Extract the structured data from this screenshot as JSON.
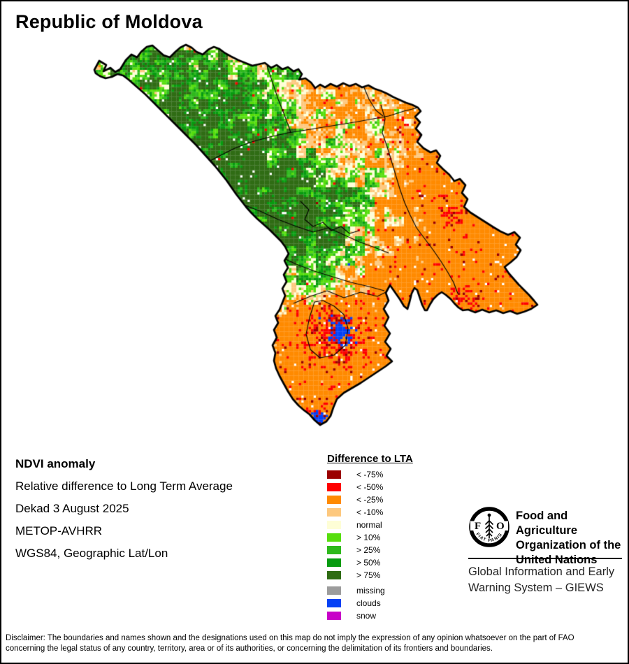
{
  "title": "Republic of Moldova",
  "info": {
    "heading": "NDVI anomaly",
    "lines": [
      "Relative difference to Long Term Average",
      "Dekad 3 August 2025",
      "METOP-AVHRR",
      "WGS84, Geographic Lat/Lon"
    ]
  },
  "legend": {
    "title": "Difference to LTA",
    "classes": [
      {
        "label": "< -75%",
        "color": "#9B0000"
      },
      {
        "label": "< -50%",
        "color": "#FE0000"
      },
      {
        "label": "< -25%",
        "color": "#FF8A00"
      },
      {
        "label": "< -10%",
        "color": "#FDC87E"
      },
      {
        "label": "normal",
        "color": "#FEFED6"
      },
      {
        "label": "> 10%",
        "color": "#56DE0D"
      },
      {
        "label": "> 25%",
        "color": "#2EB91C"
      },
      {
        "label": "> 50%",
        "color": "#079B10"
      },
      {
        "label": "> 75%",
        "color": "#2F6C14"
      }
    ],
    "extras": [
      {
        "label": "missing",
        "color": "#9C9C9C"
      },
      {
        "label": "clouds",
        "color": "#0441F5"
      },
      {
        "label": "snow",
        "color": "#C800C8"
      }
    ]
  },
  "fao": {
    "logo": {
      "letter_left": "F",
      "letter_right": "O",
      "motto": "FIAT  PANIS"
    },
    "org_lines": [
      "Food and Agriculture",
      "Organization of the",
      "United Nations"
    ],
    "giews_lines": [
      "Global Information and Early",
      "Warning System – GIEWS"
    ]
  },
  "disclaimer_lines": [
    "Disclaimer: The boundaries and names shown and the designations used on this map do not imply the expression of any opinion whatsoever on the part of FAO",
    "concerning the legal status of any country, territory, area or of its authorities, or concerning the delimitation of its frontiers and boundaries."
  ]
}
